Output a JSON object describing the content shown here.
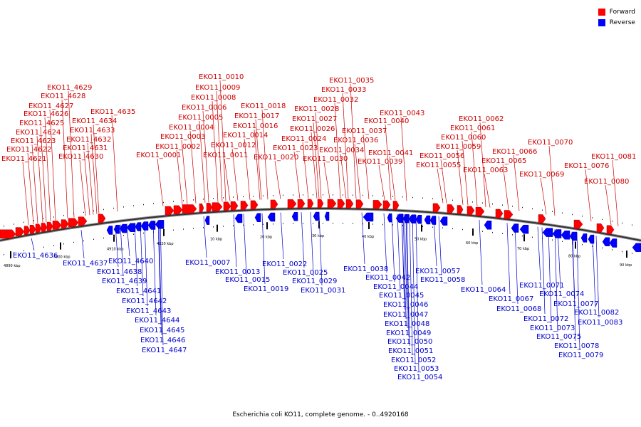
{
  "legend": {
    "forward": {
      "label": "Forward",
      "color": "#ff0000"
    },
    "reverse": {
      "label": "Reverse",
      "color": "#0000ff"
    }
  },
  "caption": "Escherichia coli KO11, complete genome. - 0..4920168",
  "scale": {
    "ticks": [
      "4890 kbp",
      "4900 kbp",
      "4910 kbp",
      "4920 kbp",
      "10 kbp",
      "20 kbp",
      "30 kbp",
      "40 kbp",
      "50 kbp",
      "60 kbp",
      "70 kbp",
      "80 kbp",
      "90 kbp"
    ]
  },
  "forward_labels": [
    "EKO11_4621",
    "EKO11_4622",
    "EKO11_4623",
    "EKO11_4624",
    "EKO11_4625",
    "EKO11_4626",
    "EKO11_4627",
    "EKO11_4628",
    "EKO11_4629",
    "EKO11_4630",
    "EKO11_4631",
    "EKO11_4632",
    "EKO11_4633",
    "EKO11_4634",
    "EKO11_4635",
    "EKO11_0001",
    "EKO11_0002",
    "EKO11_0003",
    "EKO11_0004",
    "EKO11_0005",
    "EKO11_0006",
    "EKO11_0008",
    "EKO11_0009",
    "EKO11_0010",
    "EKO11_0011",
    "EKO11_0012",
    "EKO11_0014",
    "EKO11_0016",
    "EKO11_0017",
    "EKO11_0018",
    "EKO11_0020",
    "EKO11_0023",
    "EKO11_0024",
    "EKO11_0026",
    "EKO11_0027",
    "EKO11_0028",
    "EKO11_0030",
    "EKO11_0032",
    "EKO11_0033",
    "EKO11_0034",
    "EKO11_0035",
    "EKO11_0036",
    "EKO11_0037",
    "EKO11_0039",
    "EKO11_0040",
    "EKO11_0041",
    "EKO11_0043",
    "EKO11_0055",
    "EKO11_0056",
    "EKO11_0059",
    "EKO11_0060",
    "EKO11_0061",
    "EKO11_0062",
    "EKO11_0063",
    "EKO11_0065",
    "EKO11_0066",
    "EKO11_0069",
    "EKO11_0070",
    "EKO11_0076",
    "EKO11_0080",
    "EKO11_0081"
  ],
  "reverse_labels": [
    "EKO11_4636",
    "EKO11_4637",
    "EKO11_4638",
    "EKO11_4639",
    "EKO11_4640",
    "EKO11_4641",
    "EKO11_4642",
    "EKO11_4643",
    "EKO11_4644",
    "EKO11_4645",
    "EKO11_4646",
    "EKO11_4647",
    "EKO11_0007",
    "EKO11_0013",
    "EKO11_0015",
    "EKO11_0019",
    "EKO11_0022",
    "EKO11_0025",
    "EKO11_0029",
    "EKO11_0031",
    "EKO11_0038",
    "EKO11_0042",
    "EKO11_0044",
    "EKO11_0045",
    "EKO11_0046",
    "EKO11_0047",
    "EKO11_0048",
    "EKO11_0049",
    "EKO11_0050",
    "EKO11_0051",
    "EKO11_0052",
    "EKO11_0053",
    "EKO11_0054",
    "EKO11_0057",
    "EKO11_0058",
    "EKO11_0064",
    "EKO11_0067",
    "EKO11_0068",
    "EKO11_0071",
    "EKO11_0072",
    "EKO11_0073",
    "EKO11_0074",
    "EKO11_0075",
    "EKO11_0077",
    "EKO11_0078",
    "EKO11_0079",
    "EKO11_0082",
    "EKO11_0083"
  ]
}
